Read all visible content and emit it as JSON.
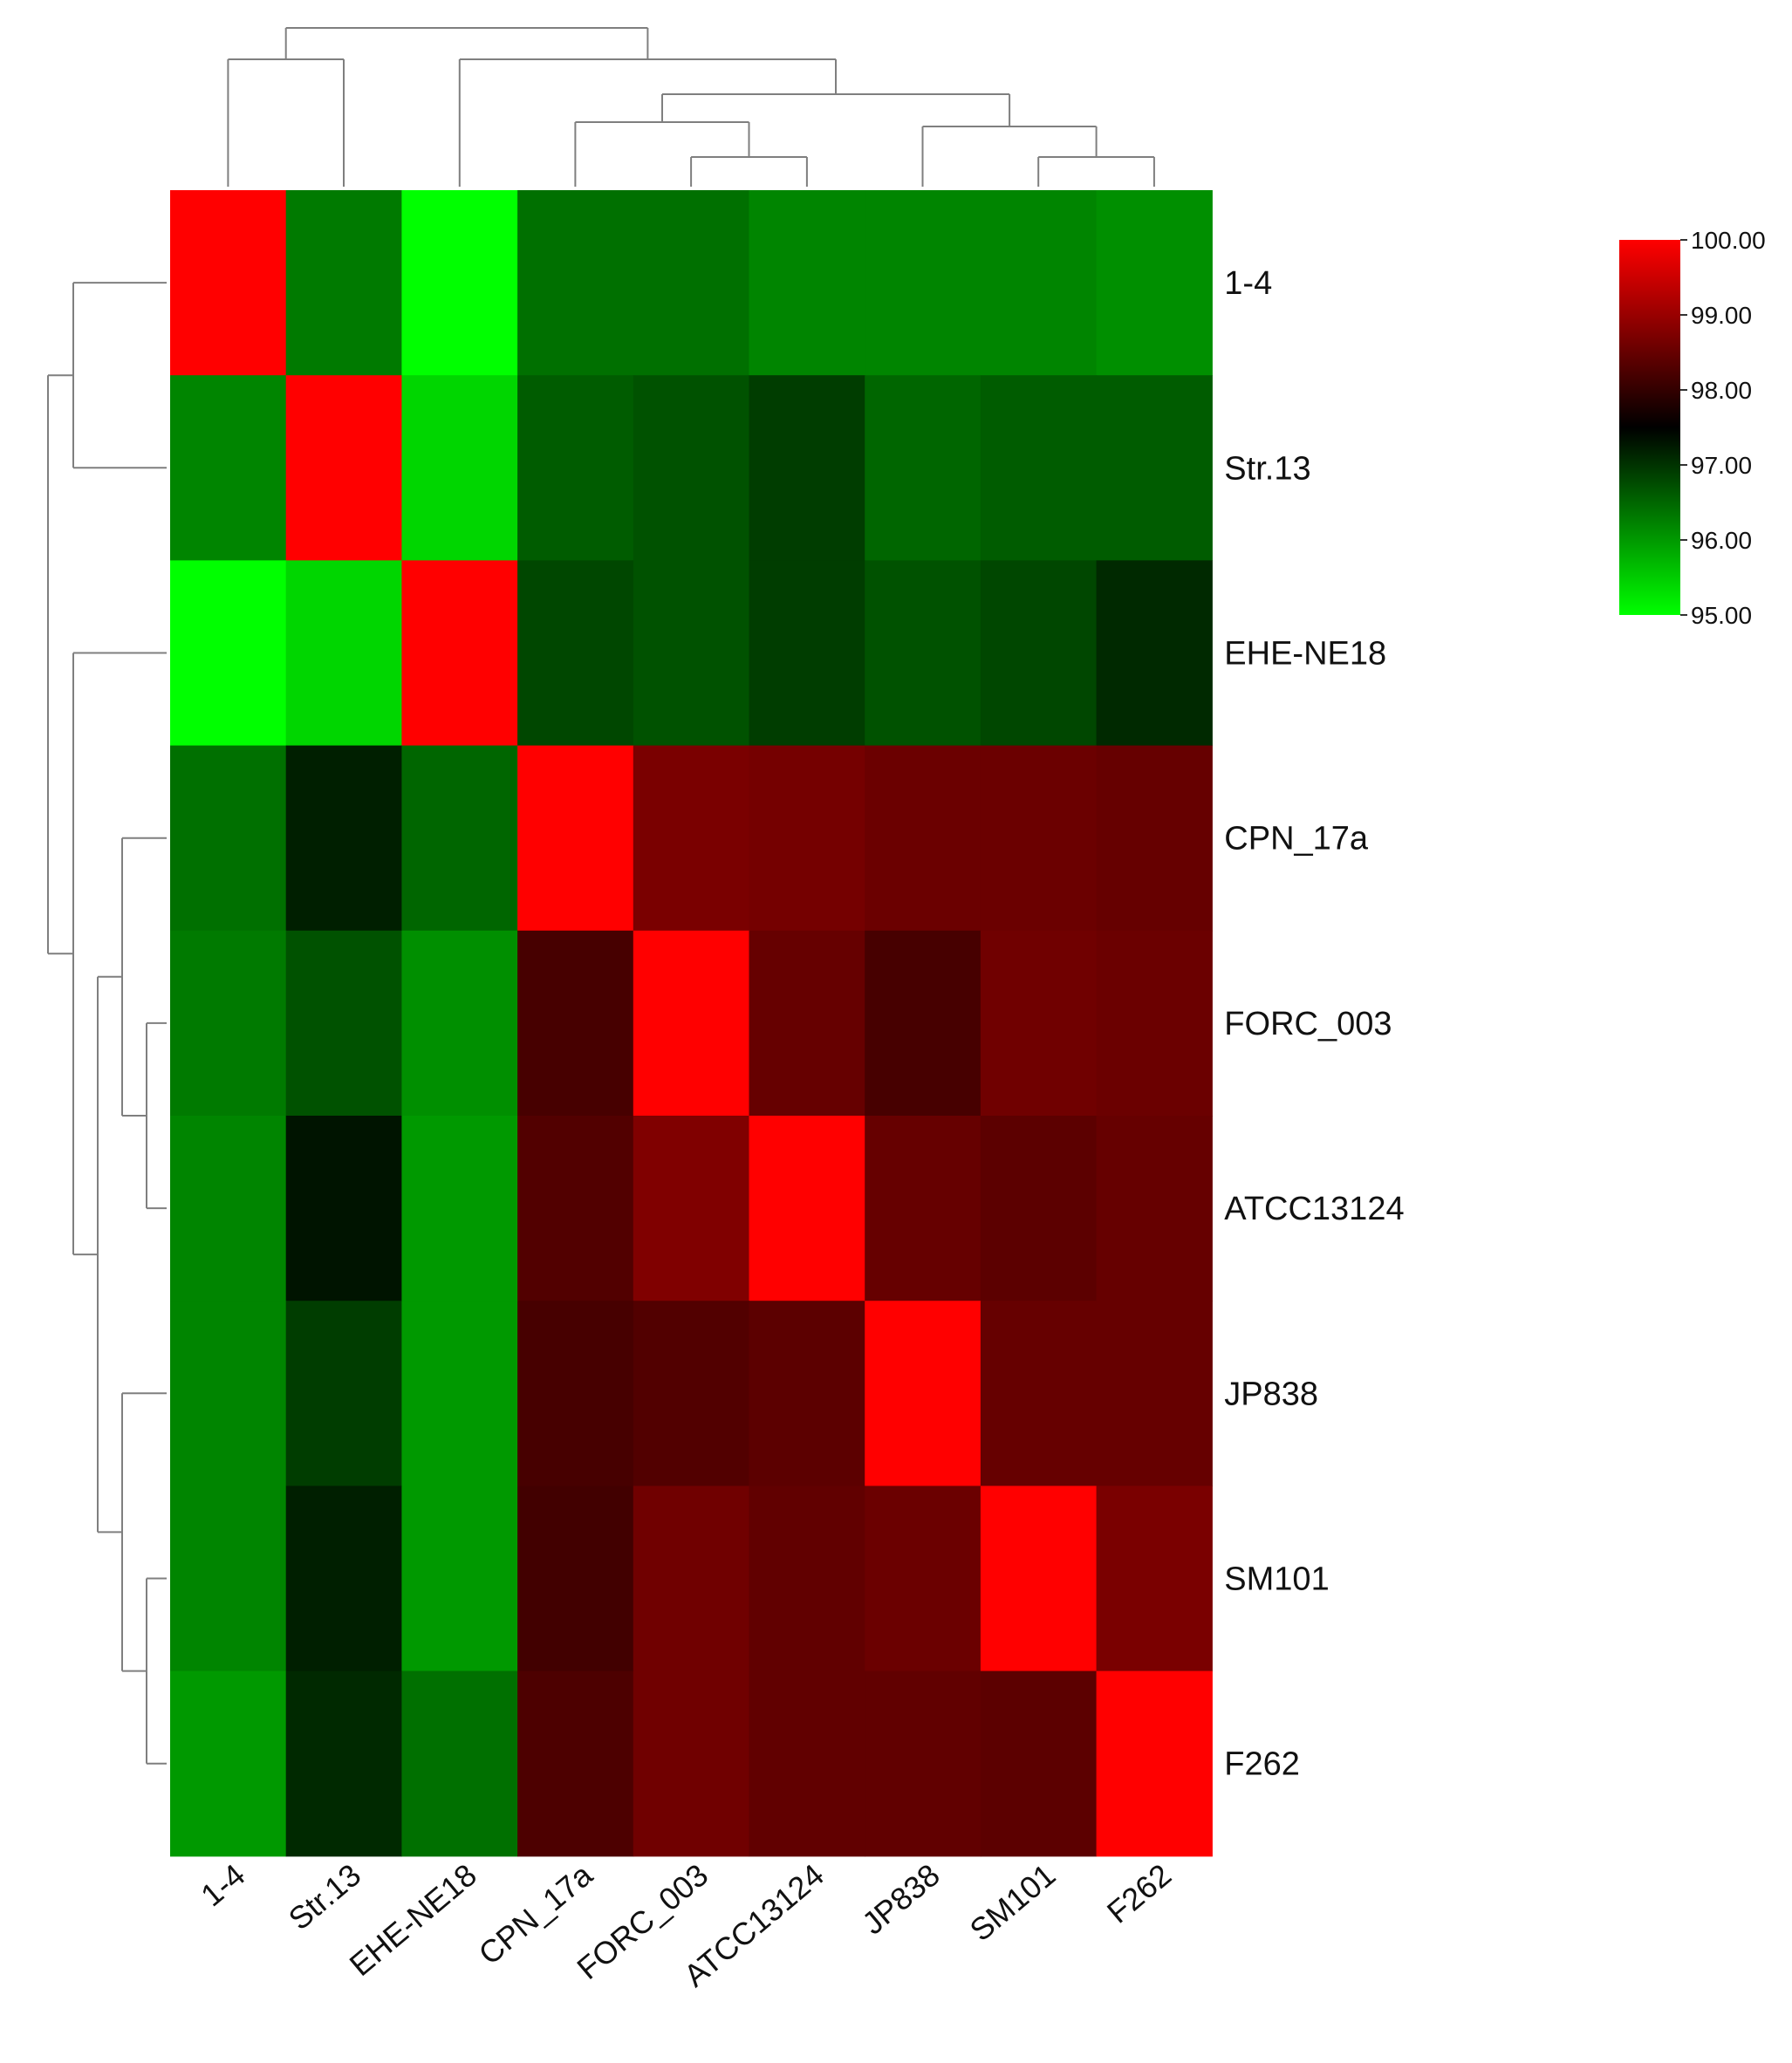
{
  "chart_data": {
    "type": "heatmap",
    "title": "",
    "labels": [
      "1-4",
      "Str.13",
      "EHE-NE18",
      "CPN_17a",
      "FORC_003",
      "ATCC13124",
      "JP838",
      "SM101",
      "F262"
    ],
    "row_labels": [
      "1-4",
      "Str.13",
      "EHE-NE18",
      "CPN_17a",
      "FORC_003",
      "ATCC13124",
      "JP838",
      "SM101",
      "F262"
    ],
    "col_labels": [
      "1-4",
      "Str.13",
      "EHE-NE18",
      "CPN_17a",
      "FORC_003",
      "ATCC13124",
      "JP838",
      "SM101",
      "F262"
    ],
    "values": [
      [
        100.0,
        96.3,
        95.0,
        96.4,
        96.4,
        96.2,
        96.2,
        96.2,
        96.1
      ],
      [
        96.2,
        100.0,
        95.4,
        96.6,
        96.7,
        96.9,
        96.5,
        96.6,
        96.6
      ],
      [
        95.0,
        95.4,
        100.0,
        96.8,
        96.7,
        96.9,
        96.7,
        96.8,
        97.1
      ],
      [
        96.4,
        97.2,
        96.5,
        100.0,
        98.7,
        98.65,
        98.55,
        98.55,
        98.5
      ],
      [
        96.3,
        96.7,
        96.1,
        98.2,
        100.0,
        98.5,
        98.2,
        98.6,
        98.55
      ],
      [
        96.2,
        97.3,
        96.0,
        98.3,
        98.75,
        100.0,
        98.5,
        98.4,
        98.5
      ],
      [
        96.2,
        96.9,
        96.0,
        98.2,
        98.3,
        98.4,
        100.0,
        98.5,
        98.5
      ],
      [
        96.2,
        97.2,
        96.0,
        98.15,
        98.6,
        98.45,
        98.55,
        100.0,
        98.7
      ],
      [
        96.0,
        97.1,
        96.4,
        98.25,
        98.6,
        98.45,
        98.45,
        98.4,
        100.0
      ]
    ],
    "color_scale": {
      "min": 95.0,
      "max": 100.0,
      "stops": [
        {
          "value": 95.0,
          "color": "#00ff00"
        },
        {
          "value": 97.5,
          "color": "#000000"
        },
        {
          "value": 100.0,
          "color": "#ff0000"
        }
      ],
      "ticks": [
        "100.00",
        "99.00",
        "98.00",
        "97.00",
        "96.00",
        "95.00"
      ]
    },
    "dendrogram": {
      "leaf_order": [
        "1-4",
        "Str.13",
        "EHE-NE18",
        "CPN_17a",
        "FORC_003",
        "ATCC13124",
        "JP838",
        "SM101",
        "F262"
      ],
      "merges": [
        {
          "a": "FORC_003",
          "b": "ATCC13124"
        },
        {
          "a": "SM101",
          "b": "F262"
        },
        {
          "a": "CPN_17a",
          "b": "FORC_003+ATCC13124"
        },
        {
          "a": "JP838",
          "b": "SM101+F262"
        },
        {
          "a": "CPN_17a+FORC_003+ATCC13124",
          "b": "JP838+SM101+F262"
        },
        {
          "a": "1-4",
          "b": "Str.13"
        },
        {
          "a": "EHE-NE18",
          "b": "CPN_17a..F262"
        },
        {
          "a": "1-4+Str.13",
          "b": "EHE-NE18..F262"
        }
      ]
    },
    "legend": {
      "position": "top-right"
    }
  }
}
